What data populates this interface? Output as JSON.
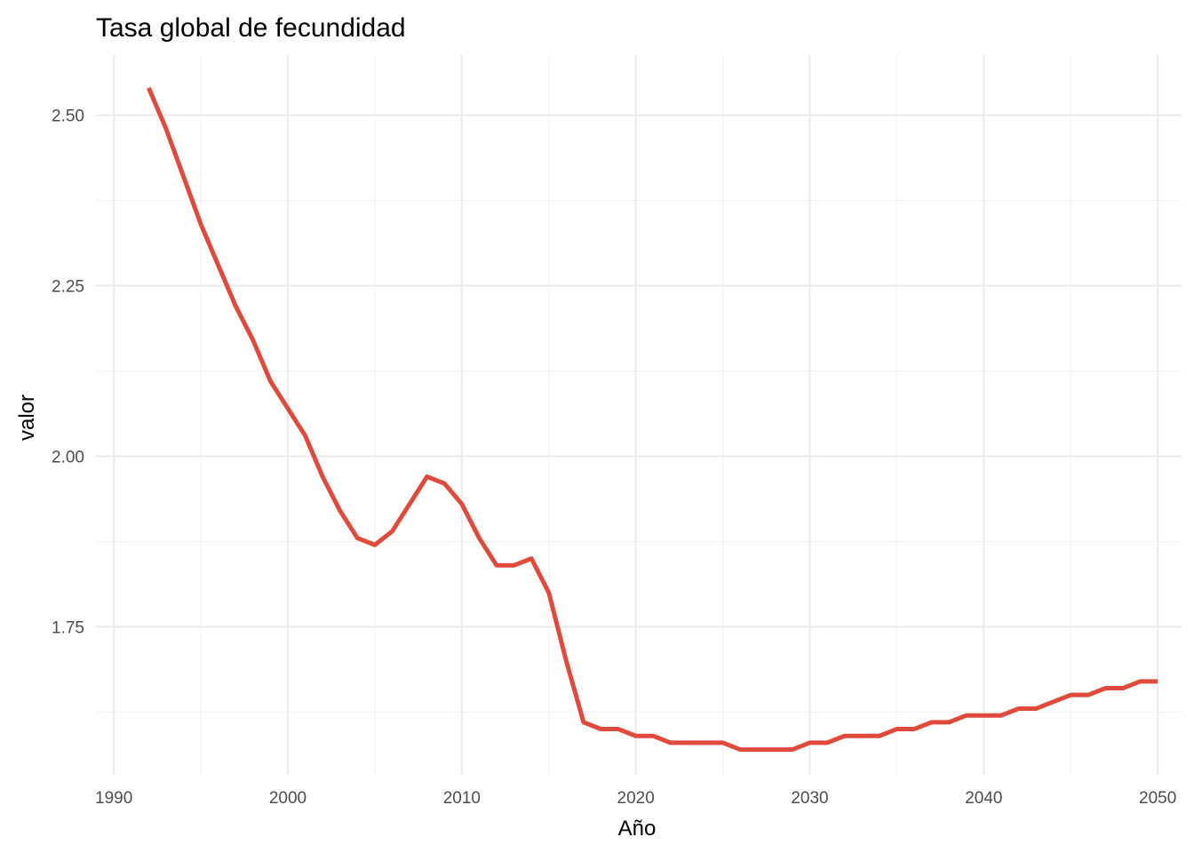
{
  "chart_data": {
    "type": "line",
    "title": "Tasa global de fecundidad",
    "xlabel": "Año",
    "ylabel": "valor",
    "xlim": [
      1988.97,
      2051.37
    ],
    "ylim": [
      1.533,
      2.588
    ],
    "x_ticks": [
      1990,
      2000,
      2010,
      2020,
      2030,
      2040,
      2050
    ],
    "y_ticks": [
      1.75,
      2.0,
      2.25,
      2.5
    ],
    "x_tick_labels": [
      "1990",
      "2000",
      "2010",
      "2020",
      "2030",
      "2040",
      "2050"
    ],
    "y_tick_labels": [
      "1.75",
      "2.00",
      "2.25",
      "2.50"
    ],
    "grid": true,
    "line_color": "#E04A3C",
    "series": [
      {
        "x": [
          1992,
          1993,
          1994,
          1995,
          1996,
          1997,
          1998,
          1999,
          2000,
          2001,
          2002,
          2003,
          2004,
          2005,
          2006,
          2007,
          2008,
          2009,
          2010,
          2011,
          2012,
          2013,
          2014,
          2015,
          2016,
          2017,
          2018,
          2019,
          2020,
          2021,
          2022,
          2023,
          2024,
          2025,
          2026,
          2027,
          2028,
          2029,
          2030,
          2031,
          2032,
          2033,
          2034,
          2035,
          2036,
          2037,
          2038,
          2039,
          2040,
          2041,
          2042,
          2043,
          2044,
          2045,
          2046,
          2047,
          2048,
          2049,
          2050
        ],
        "values": [
          2.54,
          2.48,
          2.41,
          2.34,
          2.28,
          2.22,
          2.17,
          2.11,
          2.07,
          2.03,
          1.97,
          1.92,
          1.88,
          1.87,
          1.89,
          1.93,
          1.97,
          1.96,
          1.93,
          1.88,
          1.84,
          1.84,
          1.85,
          1.8,
          1.7,
          1.61,
          1.6,
          1.6,
          1.59,
          1.59,
          1.58,
          1.58,
          1.58,
          1.58,
          1.57,
          1.57,
          1.57,
          1.57,
          1.58,
          1.58,
          1.59,
          1.59,
          1.59,
          1.6,
          1.6,
          1.61,
          1.61,
          1.62,
          1.62,
          1.62,
          1.63,
          1.63,
          1.64,
          1.65,
          1.65,
          1.66,
          1.66,
          1.67,
          1.67
        ]
      }
    ]
  }
}
